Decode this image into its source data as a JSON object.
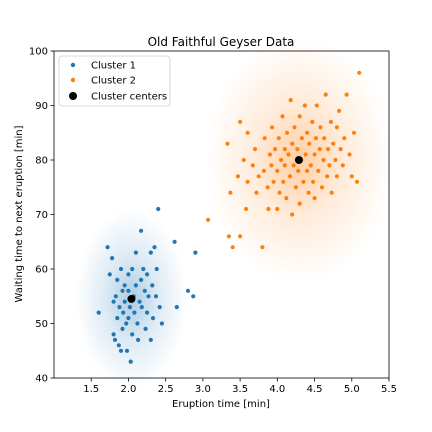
{
  "chart_data": {
    "type": "scatter",
    "title": "Old Faithful Geyser Data",
    "xlabel": "Eruption time [min]",
    "ylabel": "Waiting time to next eruption [min]",
    "xlim": [
      1.0,
      5.5
    ],
    "ylim": [
      40,
      100
    ],
    "xticks": [
      "1.5",
      "2.0",
      "2.5",
      "3.0",
      "3.5",
      "4.0",
      "4.5",
      "5.0",
      "5.5"
    ],
    "yticks": [
      "40",
      "50",
      "60",
      "70",
      "80",
      "90",
      "100"
    ],
    "grid": false,
    "legend_position": "top-left",
    "colors": {
      "cluster1": "#1f77b4",
      "cluster2": "#ff7f0e",
      "centers": "#000000"
    },
    "series": [
      {
        "name": "Cluster 1",
        "points": [
          [
            1.6,
            52
          ],
          [
            1.72,
            64
          ],
          [
            1.75,
            59
          ],
          [
            1.78,
            62
          ],
          [
            1.8,
            54
          ],
          [
            1.8,
            48
          ],
          [
            1.82,
            47
          ],
          [
            1.83,
            55
          ],
          [
            1.85,
            51
          ],
          [
            1.85,
            58
          ],
          [
            1.87,
            46
          ],
          [
            1.88,
            53
          ],
          [
            1.9,
            45
          ],
          [
            1.9,
            60
          ],
          [
            1.92,
            49
          ],
          [
            1.92,
            56
          ],
          [
            1.93,
            52
          ],
          [
            1.95,
            54
          ],
          [
            1.95,
            57
          ],
          [
            1.97,
            50
          ],
          [
            1.98,
            45
          ],
          [
            2.0,
            59
          ],
          [
            2.0,
            51
          ],
          [
            2.0,
            56
          ],
          [
            2.02,
            53
          ],
          [
            2.03,
            43
          ],
          [
            2.05,
            48
          ],
          [
            2.05,
            60
          ],
          [
            2.07,
            55
          ],
          [
            2.08,
            52
          ],
          [
            2.1,
            57
          ],
          [
            2.1,
            63
          ],
          [
            2.12,
            50
          ],
          [
            2.13,
            47
          ],
          [
            2.15,
            54
          ],
          [
            2.17,
            67
          ],
          [
            2.17,
            58
          ],
          [
            2.18,
            53
          ],
          [
            2.2,
            60
          ],
          [
            2.22,
            56
          ],
          [
            2.23,
            49
          ],
          [
            2.25,
            52
          ],
          [
            2.25,
            59
          ],
          [
            2.27,
            55
          ],
          [
            2.3,
            63
          ],
          [
            2.3,
            47
          ],
          [
            2.32,
            57
          ],
          [
            2.33,
            51
          ],
          [
            2.35,
            64
          ],
          [
            2.37,
            55
          ],
          [
            2.38,
            60
          ],
          [
            2.4,
            71
          ],
          [
            2.42,
            53
          ],
          [
            2.45,
            50
          ],
          [
            2.62,
            65
          ],
          [
            2.65,
            53
          ],
          [
            2.8,
            56
          ],
          [
            2.87,
            55
          ],
          [
            2.9,
            63
          ]
        ]
      },
      {
        "name": "Cluster 2",
        "points": [
          [
            3.07,
            69
          ],
          [
            3.33,
            83
          ],
          [
            3.35,
            66
          ],
          [
            3.37,
            74
          ],
          [
            3.4,
            64
          ],
          [
            3.47,
            77
          ],
          [
            3.5,
            66
          ],
          [
            3.5,
            87
          ],
          [
            3.55,
            80
          ],
          [
            3.58,
            71
          ],
          [
            3.6,
            76
          ],
          [
            3.6,
            85
          ],
          [
            3.67,
            79
          ],
          [
            3.7,
            82
          ],
          [
            3.72,
            74
          ],
          [
            3.75,
            77
          ],
          [
            3.8,
            64
          ],
          [
            3.82,
            78
          ],
          [
            3.83,
            84
          ],
          [
            3.87,
            75
          ],
          [
            3.88,
            71
          ],
          [
            3.9,
            81
          ],
          [
            3.92,
            79
          ],
          [
            3.93,
            86
          ],
          [
            3.95,
            76
          ],
          [
            3.97,
            82
          ],
          [
            4.0,
            71
          ],
          [
            4.0,
            78
          ],
          [
            4.02,
            84
          ],
          [
            4.03,
            74
          ],
          [
            4.05,
            80
          ],
          [
            4.07,
            88
          ],
          [
            4.08,
            76
          ],
          [
            4.1,
            82
          ],
          [
            4.1,
            79
          ],
          [
            4.12,
            73
          ],
          [
            4.13,
            85
          ],
          [
            4.15,
            81
          ],
          [
            4.17,
            77
          ],
          [
            4.18,
            91
          ],
          [
            4.2,
            83
          ],
          [
            4.2,
            70
          ],
          [
            4.22,
            79
          ],
          [
            4.23,
            86
          ],
          [
            4.25,
            75
          ],
          [
            4.27,
            82
          ],
          [
            4.28,
            78
          ],
          [
            4.3,
            88
          ],
          [
            4.3,
            72
          ],
          [
            4.32,
            80
          ],
          [
            4.33,
            84
          ],
          [
            4.35,
            76
          ],
          [
            4.37,
            90
          ],
          [
            4.38,
            81
          ],
          [
            4.4,
            78
          ],
          [
            4.4,
            85
          ],
          [
            4.42,
            74
          ],
          [
            4.43,
            83
          ],
          [
            4.45,
            79
          ],
          [
            4.47,
            87
          ],
          [
            4.48,
            76
          ],
          [
            4.5,
            81
          ],
          [
            4.5,
            73
          ],
          [
            4.52,
            84
          ],
          [
            4.53,
            90
          ],
          [
            4.55,
            78
          ],
          [
            4.57,
            82
          ],
          [
            4.58,
            86
          ],
          [
            4.6,
            75
          ],
          [
            4.62,
            80
          ],
          [
            4.63,
            84
          ],
          [
            4.65,
            92
          ],
          [
            4.67,
            77
          ],
          [
            4.68,
            82
          ],
          [
            4.7,
            79
          ],
          [
            4.72,
            87
          ],
          [
            4.73,
            74
          ],
          [
            4.75,
            83
          ],
          [
            4.78,
            80
          ],
          [
            4.8,
            86
          ],
          [
            4.8,
            77
          ],
          [
            4.83,
            89
          ],
          [
            4.85,
            82
          ],
          [
            4.88,
            79
          ],
          [
            4.9,
            84
          ],
          [
            4.93,
            92
          ],
          [
            4.97,
            81
          ],
          [
            5.0,
            77
          ],
          [
            5.03,
            85
          ],
          [
            5.07,
            76
          ],
          [
            5.1,
            96
          ]
        ]
      }
    ],
    "centers": {
      "name": "Cluster centers",
      "points": [
        [
          2.04,
          54.5
        ],
        [
          4.29,
          80.0
        ]
      ]
    },
    "density_overlay": [
      {
        "center": [
          2.04,
          54.5
        ],
        "sd_x": 0.25,
        "sd_y": 5.5,
        "color": "#1f77b4"
      },
      {
        "center": [
          4.29,
          80.0
        ],
        "sd_x": 0.42,
        "sd_y": 7.5,
        "color": "#ff7f0e"
      }
    ]
  }
}
